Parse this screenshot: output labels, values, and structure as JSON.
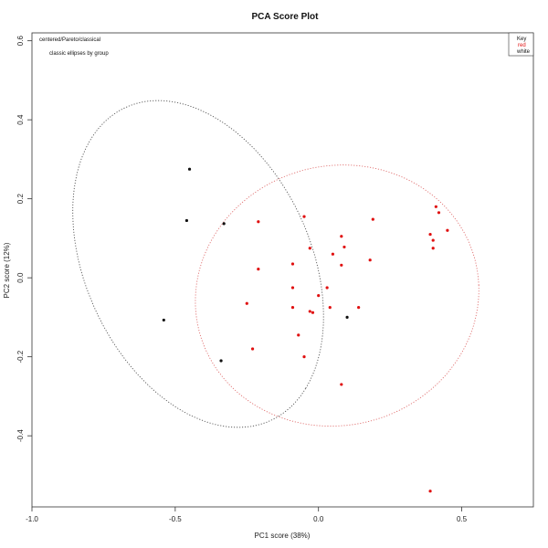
{
  "chart_data": {
    "type": "scatter",
    "title": "PCA Score Plot",
    "xlabel": "PC1 score (38%)",
    "ylabel": "PC2 score (12%)",
    "xlim": [
      -1.0,
      0.75
    ],
    "ylim": [
      -0.58,
      0.62
    ],
    "xticks": [
      -1.0,
      -0.5,
      0.0,
      0.5
    ],
    "xtick_labels": [
      "-1.0",
      "-0.5",
      "0.0",
      "0.5"
    ],
    "yticks": [
      -0.4,
      -0.2,
      0.0,
      0.2,
      0.4,
      0.6
    ],
    "ytick_labels": [
      "-0.4",
      "-0.2",
      "0.0",
      "0.2",
      "0.4",
      "0.6"
    ],
    "grid": false,
    "legend_position": "top-right",
    "annotations": [
      "centered/Pareto/classical",
      "classic ellipses by group"
    ],
    "legend": {
      "title": "Key",
      "entries": [
        {
          "label": "red",
          "color": "#e01010"
        },
        {
          "label": "white",
          "color": "#111111"
        }
      ]
    },
    "series": [
      {
        "name": "red",
        "color": "#e01010",
        "points": [
          [
            -0.05,
            0.155
          ],
          [
            0.19,
            0.148
          ],
          [
            -0.21,
            0.142
          ],
          [
            0.41,
            0.18
          ],
          [
            0.42,
            0.165
          ],
          [
            0.45,
            0.12
          ],
          [
            0.39,
            0.11
          ],
          [
            0.4,
            0.095
          ],
          [
            0.4,
            0.075
          ],
          [
            -0.03,
            0.075
          ],
          [
            0.08,
            0.105
          ],
          [
            0.09,
            0.078
          ],
          [
            0.05,
            0.06
          ],
          [
            0.18,
            0.045
          ],
          [
            -0.09,
            0.035
          ],
          [
            0.08,
            0.032
          ],
          [
            -0.21,
            0.022
          ],
          [
            -0.09,
            -0.025
          ],
          [
            0.03,
            -0.025
          ],
          [
            0.0,
            -0.045
          ],
          [
            -0.25,
            -0.065
          ],
          [
            -0.09,
            -0.075
          ],
          [
            0.04,
            -0.075
          ],
          [
            0.14,
            -0.075
          ],
          [
            -0.03,
            -0.085
          ],
          [
            -0.02,
            -0.088
          ],
          [
            -0.07,
            -0.145
          ],
          [
            -0.23,
            -0.18
          ],
          [
            -0.05,
            -0.2
          ],
          [
            0.08,
            -0.27
          ],
          [
            0.39,
            -0.54
          ]
        ]
      },
      {
        "name": "white",
        "color": "#111111",
        "points": [
          [
            -0.45,
            0.275
          ],
          [
            -0.46,
            0.145
          ],
          [
            -0.33,
            0.137
          ],
          [
            -0.54,
            -0.107
          ],
          [
            0.1,
            -0.1
          ],
          [
            -0.34,
            -0.21
          ]
        ]
      }
    ],
    "ellipses": [
      {
        "group": "white",
        "color": "#555555",
        "center": [
          -0.42,
          0.035
        ],
        "semi_axes": [
          0.49,
          0.35
        ],
        "angle_deg": -40
      },
      {
        "group": "red",
        "color": "#e07070",
        "center": [
          0.065,
          -0.045
        ],
        "semi_axes": [
          0.495,
          0.33
        ],
        "angle_deg": 3
      }
    ]
  }
}
